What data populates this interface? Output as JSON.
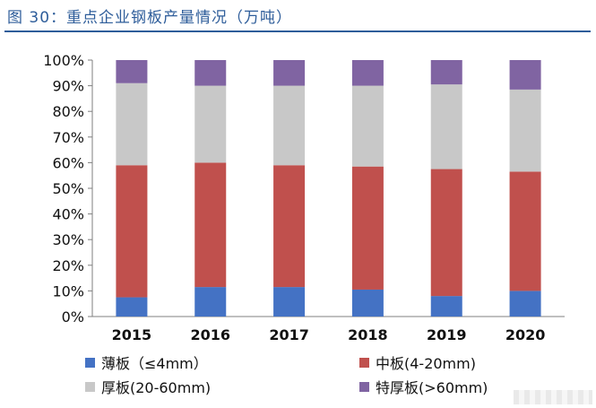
{
  "figure": {
    "title": "图 30：重点企业钢板产量情况（万吨）"
  },
  "chart_data": {
    "type": "bar",
    "stacked": true,
    "categories": [
      "2015",
      "2016",
      "2017",
      "2018",
      "2019",
      "2020"
    ],
    "y_ticks": [
      "0%",
      "10%",
      "20%",
      "30%",
      "40%",
      "50%",
      "60%",
      "70%",
      "80%",
      "90%",
      "100%"
    ],
    "ylim": [
      0,
      100
    ],
    "grid": false,
    "legend_position": "bottom",
    "series": [
      {
        "name": "薄板（≤4mm）",
        "color": "#4472c4",
        "values": [
          7.5,
          11.5,
          11.5,
          10.5,
          8,
          10
        ]
      },
      {
        "name": "中板(4-20mm)",
        "color": "#c0504d",
        "values": [
          51.5,
          48.5,
          47.5,
          48,
          49.5,
          46.5
        ]
      },
      {
        "name": "厚板(20-60mm)",
        "color": "#c8c8c8",
        "values": [
          32,
          30,
          31,
          31.5,
          33,
          32
        ]
      },
      {
        "name": "特厚板(>60mm)",
        "color": "#8064a2",
        "values": [
          9,
          10,
          10,
          10,
          9.5,
          11.5
        ]
      }
    ]
  }
}
